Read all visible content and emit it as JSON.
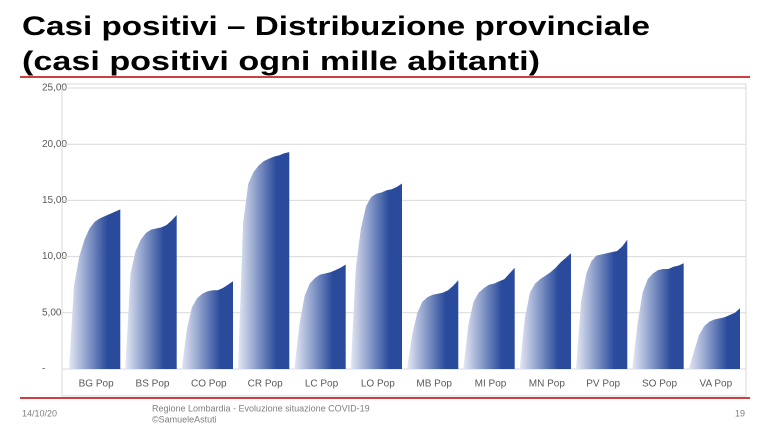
{
  "slide": {
    "title_line1": "Casi positivi – Distribuzione provinciale",
    "title_line2": "(casi positivi ogni mille abitanti)",
    "date": "14/10/20",
    "footer_line1": "Regione Lombardia - Evoluzione situazione COVID-19",
    "footer_line2": "©SamueleAstuti",
    "page": "19"
  },
  "chart_data": {
    "type": "area",
    "categories": [
      "BG Pop",
      "BS Pop",
      "CO Pop",
      "CR Pop",
      "LC Pop",
      "LO Pop",
      "MB Pop",
      "MI Pop",
      "MN Pop",
      "PV Pop",
      "SO Pop",
      "VA Pop"
    ],
    "values": [
      [
        0,
        7.5,
        10,
        11.5,
        12.5,
        13.1,
        13.4,
        13.6,
        13.8,
        14.0,
        14.2
      ],
      [
        0,
        8.5,
        10.5,
        11.5,
        12.1,
        12.4,
        12.5,
        12.6,
        12.8,
        13.2,
        13.7
      ],
      [
        0,
        3.5,
        5.5,
        6.3,
        6.7,
        6.9,
        7.0,
        7.0,
        7.2,
        7.5,
        7.8
      ],
      [
        0,
        13,
        16.5,
        17.5,
        18.1,
        18.5,
        18.7,
        18.9,
        19.0,
        19.2,
        19.3
      ],
      [
        0,
        4,
        6.5,
        7.6,
        8.1,
        8.4,
        8.5,
        8.6,
        8.8,
        9.0,
        9.3
      ],
      [
        0,
        9,
        12.5,
        14.5,
        15.3,
        15.6,
        15.7,
        15.9,
        16.0,
        16.2,
        16.5
      ],
      [
        0,
        3,
        5,
        6.0,
        6.4,
        6.6,
        6.7,
        6.8,
        7.0,
        7.4,
        7.9
      ],
      [
        0,
        4,
        6,
        6.8,
        7.2,
        7.5,
        7.6,
        7.8,
        8.0,
        8.5,
        9.0
      ],
      [
        0,
        4.5,
        6.8,
        7.6,
        8.0,
        8.3,
        8.6,
        9.0,
        9.5,
        9.9,
        10.3
      ],
      [
        0,
        6,
        8.5,
        9.6,
        10.1,
        10.2,
        10.3,
        10.4,
        10.5,
        10.9,
        11.5
      ],
      [
        0,
        4,
        6.8,
        8.0,
        8.5,
        8.8,
        8.9,
        8.9,
        9.1,
        9.2,
        9.4
      ],
      [
        0,
        1.5,
        3,
        3.8,
        4.2,
        4.4,
        4.5,
        4.6,
        4.8,
        5.0,
        5.4
      ]
    ],
    "colors": [
      "#e4e8f4",
      "#2a4b9b"
    ],
    "ylim": [
      0,
      25
    ],
    "yticks": [
      {
        "value": 0,
        "label": "-"
      },
      {
        "value": 5,
        "label": "5,00"
      },
      {
        "value": 10,
        "label": "10,00"
      },
      {
        "value": 15,
        "label": "15,00"
      },
      {
        "value": 20,
        "label": "20,00"
      },
      {
        "value": 25,
        "label": "25,00"
      }
    ],
    "grid": true
  }
}
